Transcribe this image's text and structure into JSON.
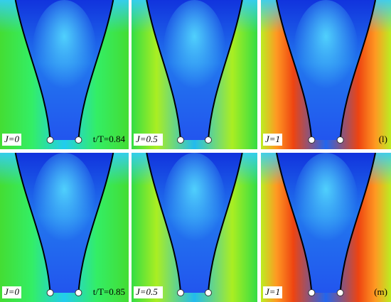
{
  "panels": [
    {
      "label": "J=0",
      "note": "t/T=0.84"
    },
    {
      "label": "J=0.5"
    },
    {
      "label": "J=1",
      "note": "(l)"
    },
    {
      "label": "J=0",
      "note": "t/T=0.85"
    },
    {
      "label": "J=0.5"
    },
    {
      "label": "J=1",
      "note": "(m)"
    }
  ]
}
